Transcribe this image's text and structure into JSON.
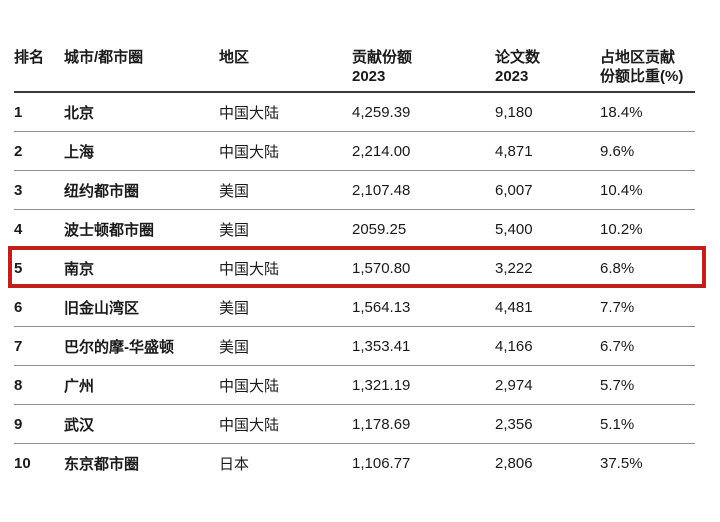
{
  "colors": {
    "background": "#ffffff",
    "text": "#1a1a1a",
    "header_rule": "#3a3a3a",
    "row_rule": "#8e8e8e",
    "highlight_border": "#c01f1c"
  },
  "table": {
    "headers": [
      {
        "line1": "排名",
        "line2": ""
      },
      {
        "line1": "城市/都市圈",
        "line2": ""
      },
      {
        "line1": "地区",
        "line2": ""
      },
      {
        "line1": "贡献份额",
        "line2": "2023"
      },
      {
        "line1": "论文数",
        "line2": "2023"
      },
      {
        "line1": "占地区贡献",
        "line2": "份额比重(%)"
      }
    ],
    "rows": [
      {
        "rank": "1",
        "city": "北京",
        "region": "中国大陆",
        "share": "4,259.39",
        "papers": "9,180",
        "pct": "18.4%",
        "highlighted": false
      },
      {
        "rank": "2",
        "city": "上海",
        "region": "中国大陆",
        "share": "2,214.00",
        "papers": "4,871",
        "pct": "9.6%",
        "highlighted": false
      },
      {
        "rank": "3",
        "city": "纽约都市圈",
        "region": "美国",
        "share": "2,107.48",
        "papers": "6,007",
        "pct": "10.4%",
        "highlighted": false
      },
      {
        "rank": "4",
        "city": "波士顿都市圈",
        "region": "美国",
        "share": "2059.25",
        "papers": "5,400",
        "pct": "10.2%",
        "highlighted": false
      },
      {
        "rank": "5",
        "city": "南京",
        "region": "中国大陆",
        "share": "1,570.80",
        "papers": "3,222",
        "pct": "6.8%",
        "highlighted": true
      },
      {
        "rank": "6",
        "city": "旧金山湾区",
        "region": "美国",
        "share": "1,564.13",
        "papers": "4,481",
        "pct": "7.7%",
        "highlighted": false
      },
      {
        "rank": "7",
        "city": "巴尔的摩-华盛顿",
        "region": "美国",
        "share": "1,353.41",
        "papers": "4,166",
        "pct": "6.7%",
        "highlighted": false
      },
      {
        "rank": "8",
        "city": "广州",
        "region": "中国大陆",
        "share": "1,321.19",
        "papers": "2,974",
        "pct": "5.7%",
        "highlighted": false
      },
      {
        "rank": "9",
        "city": "武汉",
        "region": "中国大陆",
        "share": "1,178.69",
        "papers": "2,356",
        "pct": "5.1%",
        "highlighted": false
      },
      {
        "rank": "10",
        "city": "东京都市圈",
        "region": "日本",
        "share": "1,106.77",
        "papers": "2,806",
        "pct": "37.5%",
        "highlighted": false
      }
    ]
  }
}
